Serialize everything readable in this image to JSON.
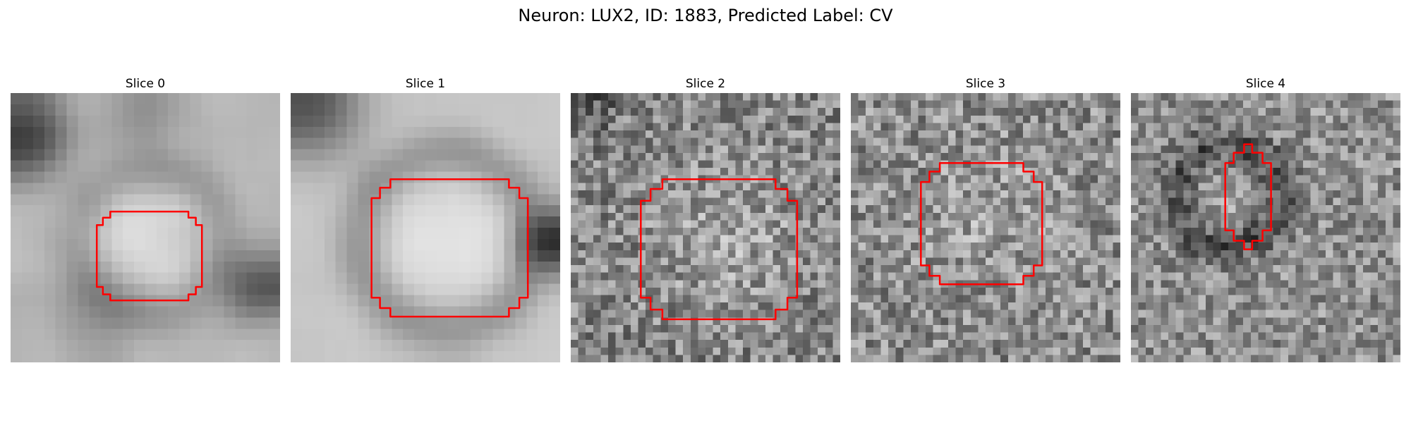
{
  "figure": {
    "title": "Neuron: LUX2, ID: 1883, Predicted Label: CV"
  },
  "panels": [
    {
      "title": "Slice 0"
    },
    {
      "title": "Slice 1"
    },
    {
      "title": "Slice 2"
    },
    {
      "title": "Slice 3"
    },
    {
      "title": "Slice 4"
    }
  ],
  "colors": {
    "outline": "#ff0000",
    "background": "#ffffff"
  }
}
